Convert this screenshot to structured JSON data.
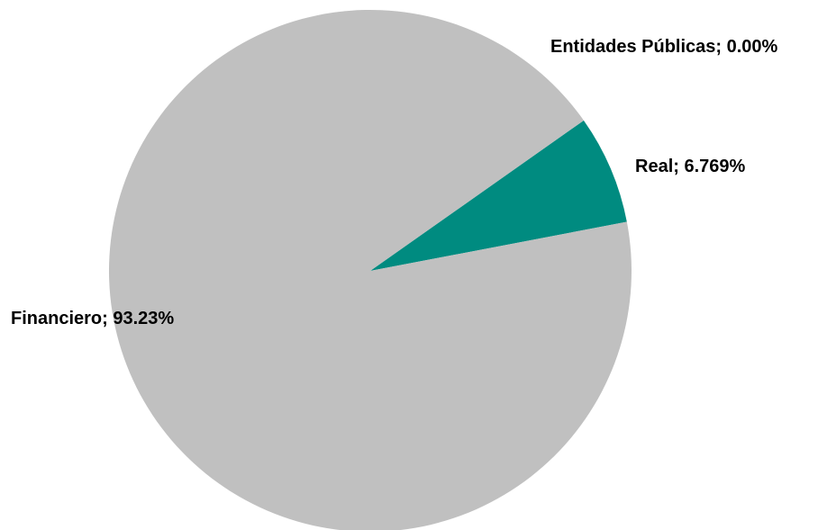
{
  "chart_data": {
    "type": "pie",
    "slices": [
      {
        "name": "Real",
        "value": 6.769,
        "label": "Real; 6.769%",
        "color": "#008B80"
      },
      {
        "name": "Financiero",
        "value": 93.23,
        "label": "Financiero; 93.23%",
        "color": "#C0C0C0"
      },
      {
        "name": "Entidades Públicas",
        "value": 0.0,
        "label": "Entidades Públicas; 0.00%",
        "color": "#4F81BD"
      }
    ],
    "legend": "none",
    "labels": "outside"
  }
}
